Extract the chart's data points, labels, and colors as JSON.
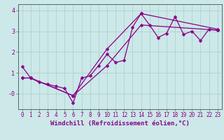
{
  "xlabel": "Windchill (Refroidissement éolien,°C)",
  "bg_color": "#cce8e8",
  "line_color": "#880088",
  "grid_color": "#aacccc",
  "spine_color": "#556666",
  "xlim": [
    -0.5,
    23.5
  ],
  "ylim": [
    -0.75,
    4.3
  ],
  "xticks": [
    0,
    1,
    2,
    3,
    4,
    5,
    6,
    7,
    8,
    9,
    10,
    11,
    12,
    13,
    14,
    15,
    16,
    17,
    18,
    19,
    20,
    21,
    22,
    23
  ],
  "yticks": [
    0,
    1,
    2,
    3,
    4
  ],
  "ytick_labels": [
    "-0",
    "1",
    "2",
    "3",
    "4"
  ],
  "series1_x": [
    0,
    1,
    2,
    3,
    4,
    5,
    6,
    7,
    8,
    9,
    10,
    11,
    12,
    13,
    14,
    15,
    16,
    17,
    18,
    19,
    20,
    21,
    22,
    23
  ],
  "series1_y": [
    1.3,
    0.75,
    0.55,
    0.45,
    0.35,
    0.25,
    -0.45,
    0.75,
    0.85,
    1.35,
    1.9,
    1.5,
    1.6,
    3.2,
    3.85,
    3.3,
    2.7,
    2.9,
    3.7,
    2.85,
    3.0,
    2.55,
    3.1,
    3.05
  ],
  "series2_x": [
    0,
    1,
    6,
    10,
    14,
    23
  ],
  "series2_y": [
    0.75,
    0.75,
    -0.1,
    1.35,
    3.3,
    3.05
  ],
  "series3_x": [
    0,
    1,
    6,
    10,
    14,
    23
  ],
  "series3_y": [
    0.75,
    0.75,
    -0.1,
    2.15,
    3.85,
    3.1
  ],
  "markersize": 2.5,
  "linewidth": 0.9,
  "tick_fontsize": 5.5,
  "xlabel_fontsize": 6.5
}
